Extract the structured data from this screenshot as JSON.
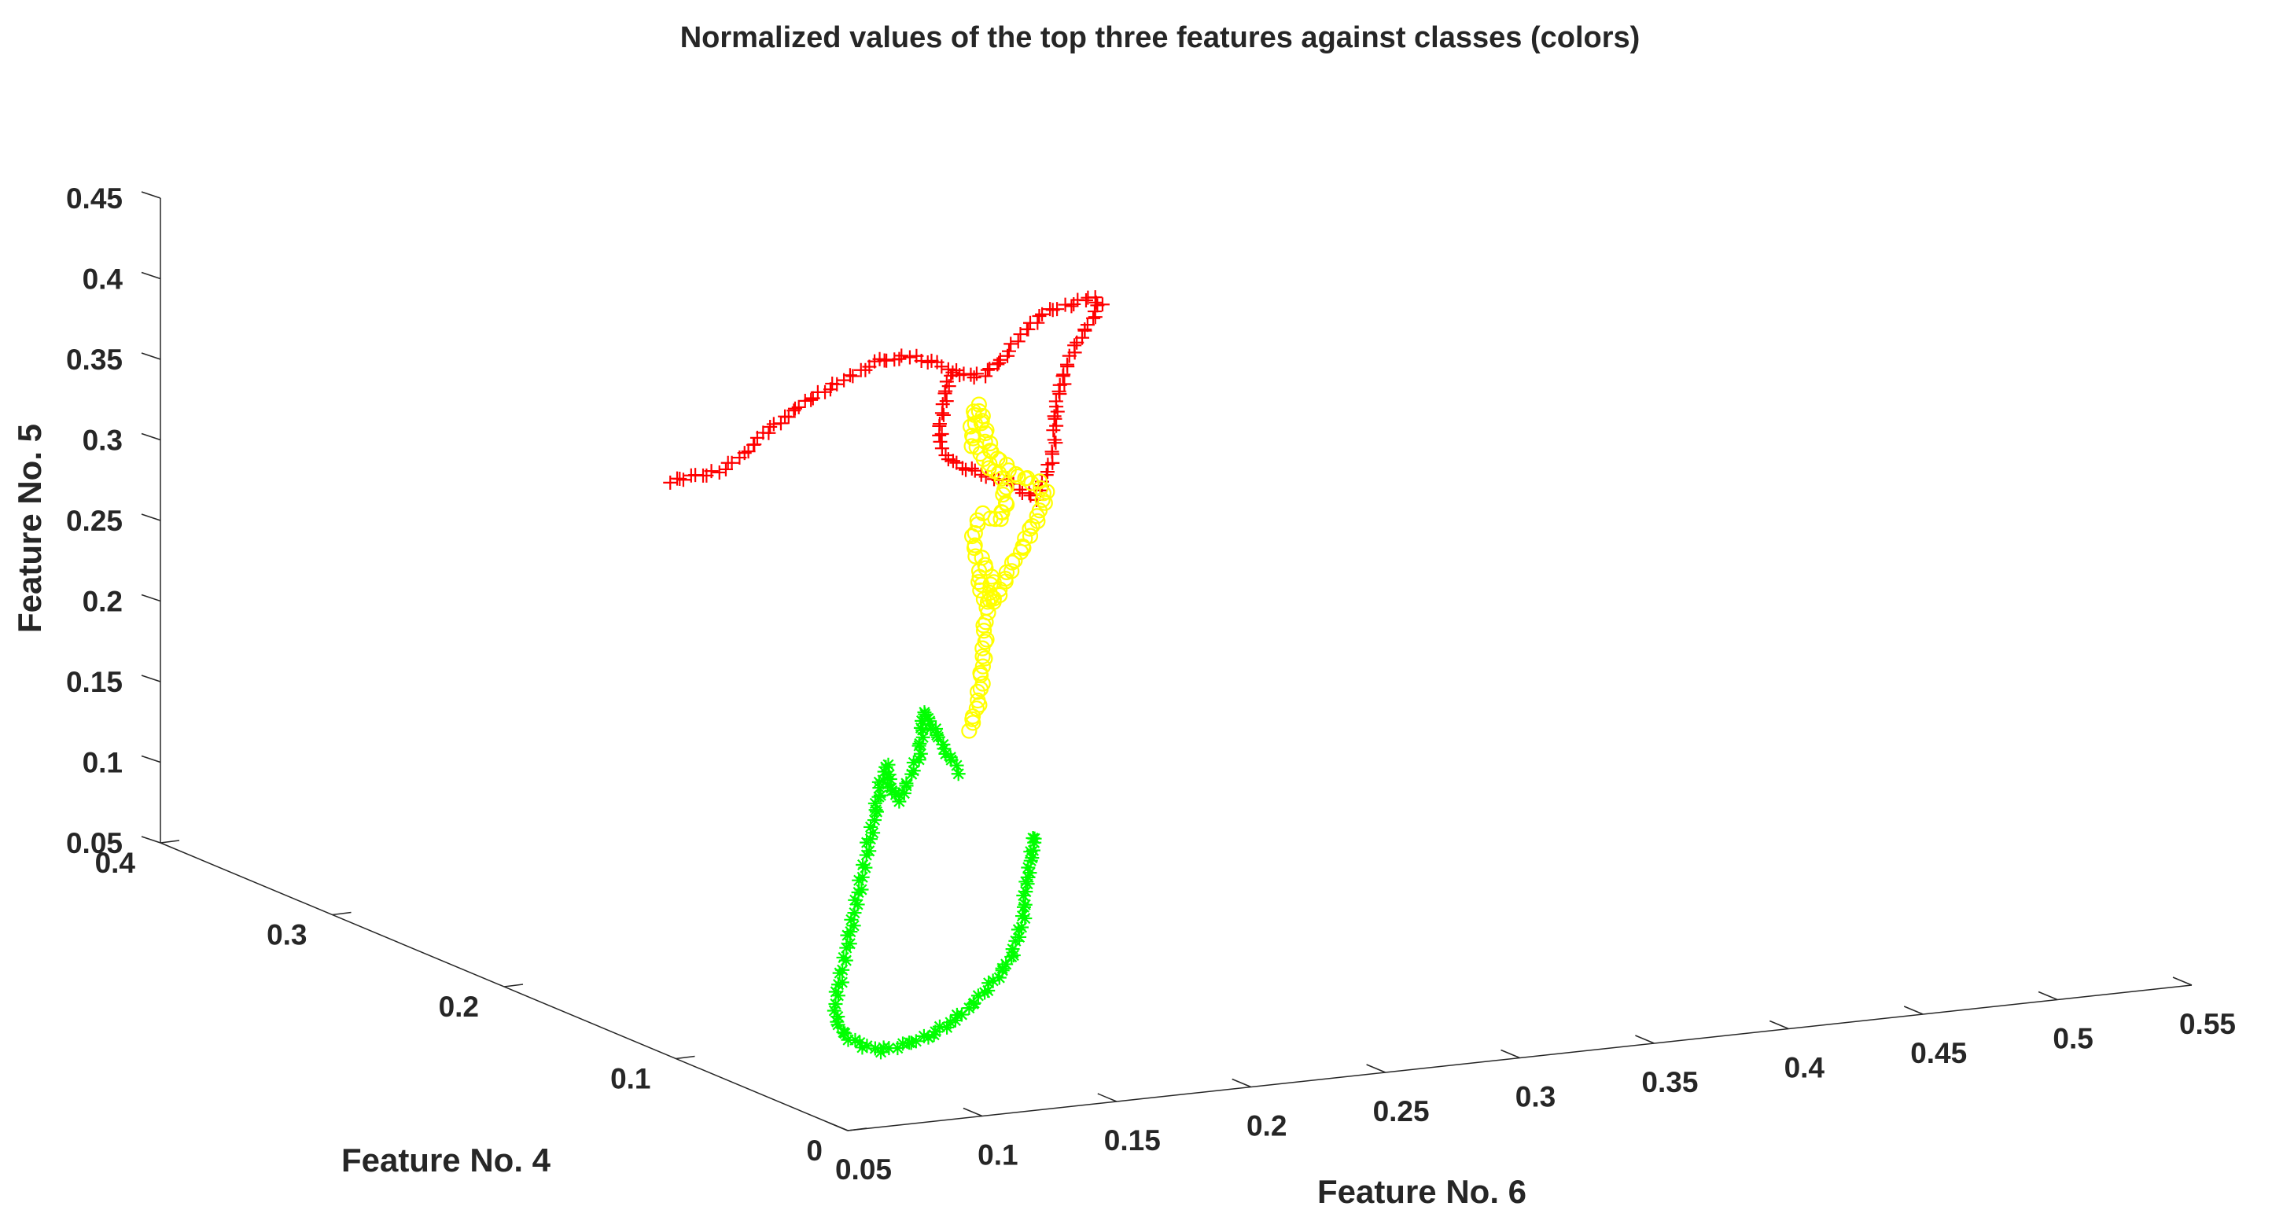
{
  "chart_data": {
    "type": "scatter",
    "projection": "3d",
    "title": "Normalized values of the top three features against classes (colors)",
    "xlabel": "Feature No. 6",
    "ylabel": "Feature No. 4",
    "zlabel": "Feature No. 5",
    "xlim": [
      0.05,
      0.55
    ],
    "ylim": [
      0,
      0.4
    ],
    "zlim": [
      0.05,
      0.45
    ],
    "xticks": [
      "0.05",
      "0.1",
      "0.15",
      "0.2",
      "0.25",
      "0.3",
      "0.35",
      "0.4",
      "0.45",
      "0.5",
      "0.55"
    ],
    "yticks": [
      "0",
      "0.1",
      "0.2",
      "0.3",
      "0.4"
    ],
    "zticks": [
      "0.05",
      "0.1",
      "0.15",
      "0.2",
      "0.25",
      "0.3",
      "0.35",
      "0.4",
      "0.45"
    ],
    "grid": false,
    "legend": "none",
    "series": [
      {
        "color": "#ff0000",
        "marker": "+",
        "points": [
          [
            0.115,
            0.205,
            0.35
          ],
          [
            0.123,
            0.203,
            0.352
          ],
          [
            0.13,
            0.2,
            0.355
          ],
          [
            0.142,
            0.202,
            0.365
          ],
          [
            0.15,
            0.206,
            0.372
          ],
          [
            0.162,
            0.21,
            0.38
          ],
          [
            0.17,
            0.213,
            0.385
          ],
          [
            0.178,
            0.214,
            0.39
          ],
          [
            0.185,
            0.214,
            0.396
          ],
          [
            0.19,
            0.212,
            0.401
          ],
          [
            0.195,
            0.215,
            0.403
          ],
          [
            0.202,
            0.22,
            0.402
          ],
          [
            0.21,
            0.224,
            0.4
          ],
          [
            0.217,
            0.226,
            0.399
          ],
          [
            0.222,
            0.23,
            0.396
          ],
          [
            0.23,
            0.236,
            0.39
          ],
          [
            0.236,
            0.24,
            0.385
          ],
          [
            0.244,
            0.246,
            0.378
          ],
          [
            0.252,
            0.252,
            0.37
          ],
          [
            0.26,
            0.258,
            0.365
          ],
          [
            0.268,
            0.262,
            0.363
          ],
          [
            0.275,
            0.266,
            0.365
          ],
          [
            0.28,
            0.268,
            0.37
          ],
          [
            0.284,
            0.268,
            0.378
          ],
          [
            0.286,
            0.266,
            0.385
          ],
          [
            0.288,
            0.263,
            0.392
          ],
          [
            0.292,
            0.262,
            0.398
          ],
          [
            0.3,
            0.262,
            0.4
          ],
          [
            0.308,
            0.266,
            0.4
          ],
          [
            0.314,
            0.27,
            0.398
          ],
          [
            0.318,
            0.272,
            0.394
          ],
          [
            0.312,
            0.268,
            0.386
          ],
          [
            0.306,
            0.265,
            0.378
          ],
          [
            0.302,
            0.263,
            0.37
          ],
          [
            0.298,
            0.261,
            0.362
          ],
          [
            0.295,
            0.258,
            0.355
          ],
          [
            0.292,
            0.256,
            0.348
          ],
          [
            0.29,
            0.254,
            0.34
          ],
          [
            0.287,
            0.25,
            0.333
          ],
          [
            0.283,
            0.244,
            0.325
          ],
          [
            0.278,
            0.238,
            0.318
          ],
          [
            0.272,
            0.232,
            0.312
          ],
          [
            0.266,
            0.226,
            0.308
          ],
          [
            0.262,
            0.222,
            0.304
          ],
          [
            0.258,
            0.22,
            0.309
          ],
          [
            0.252,
            0.216,
            0.316
          ],
          [
            0.246,
            0.214,
            0.322
          ],
          [
            0.24,
            0.212,
            0.326
          ],
          [
            0.234,
            0.21,
            0.33
          ],
          [
            0.228,
            0.206,
            0.336
          ],
          [
            0.222,
            0.202,
            0.341
          ],
          [
            0.216,
            0.198,
            0.346
          ],
          [
            0.212,
            0.196,
            0.353
          ],
          [
            0.21,
            0.196,
            0.361
          ],
          [
            0.211,
            0.198,
            0.369
          ],
          [
            0.214,
            0.201,
            0.377
          ],
          [
            0.217,
            0.204,
            0.385
          ],
          [
            0.219,
            0.206,
            0.393
          ],
          [
            0.224,
            0.209,
            0.397
          ]
        ]
      },
      {
        "color": "#ffff00",
        "marker": "o",
        "points": [
          [
            0.2,
            0.164,
            0.199
          ],
          [
            0.204,
            0.166,
            0.209
          ],
          [
            0.208,
            0.17,
            0.22
          ],
          [
            0.212,
            0.175,
            0.231
          ],
          [
            0.216,
            0.18,
            0.242
          ],
          [
            0.22,
            0.186,
            0.253
          ],
          [
            0.224,
            0.19,
            0.262
          ],
          [
            0.228,
            0.194,
            0.272
          ],
          [
            0.226,
            0.196,
            0.282
          ],
          [
            0.222,
            0.196,
            0.292
          ],
          [
            0.226,
            0.202,
            0.3
          ],
          [
            0.234,
            0.21,
            0.305
          ],
          [
            0.24,
            0.215,
            0.3
          ],
          [
            0.247,
            0.22,
            0.296
          ],
          [
            0.253,
            0.226,
            0.3
          ],
          [
            0.256,
            0.231,
            0.31
          ],
          [
            0.25,
            0.226,
            0.32
          ],
          [
            0.244,
            0.222,
            0.33
          ],
          [
            0.238,
            0.218,
            0.339
          ],
          [
            0.234,
            0.216,
            0.349
          ],
          [
            0.236,
            0.218,
            0.359
          ],
          [
            0.24,
            0.222,
            0.366
          ],
          [
            0.244,
            0.226,
            0.358
          ],
          [
            0.246,
            0.227,
            0.348
          ],
          [
            0.248,
            0.228,
            0.338
          ],
          [
            0.252,
            0.23,
            0.329
          ],
          [
            0.258,
            0.234,
            0.32
          ],
          [
            0.264,
            0.238,
            0.313
          ],
          [
            0.27,
            0.242,
            0.307
          ],
          [
            0.278,
            0.246,
            0.301
          ],
          [
            0.282,
            0.248,
            0.295
          ],
          [
            0.28,
            0.246,
            0.287
          ],
          [
            0.276,
            0.244,
            0.279
          ],
          [
            0.272,
            0.242,
            0.271
          ],
          [
            0.266,
            0.238,
            0.263
          ],
          [
            0.26,
            0.234,
            0.256
          ],
          [
            0.254,
            0.228,
            0.251
          ],
          [
            0.248,
            0.222,
            0.248
          ],
          [
            0.242,
            0.216,
            0.247
          ],
          [
            0.236,
            0.21,
            0.25
          ],
          [
            0.232,
            0.206,
            0.256
          ],
          [
            0.23,
            0.204,
            0.264
          ],
          [
            0.228,
            0.202,
            0.275
          ]
        ]
      },
      {
        "color": "#00ff00",
        "marker": "*",
        "points": [
          [
            0.196,
            0.164,
            0.173
          ],
          [
            0.192,
            0.162,
            0.181
          ],
          [
            0.188,
            0.16,
            0.191
          ],
          [
            0.184,
            0.158,
            0.201
          ],
          [
            0.18,
            0.156,
            0.21
          ],
          [
            0.178,
            0.156,
            0.218
          ],
          [
            0.176,
            0.154,
            0.206
          ],
          [
            0.174,
            0.152,
            0.194
          ],
          [
            0.17,
            0.15,
            0.185
          ],
          [
            0.166,
            0.148,
            0.176
          ],
          [
            0.162,
            0.146,
            0.17
          ],
          [
            0.158,
            0.144,
            0.176
          ],
          [
            0.156,
            0.142,
            0.186
          ],
          [
            0.154,
            0.14,
            0.196
          ],
          [
            0.15,
            0.136,
            0.193
          ],
          [
            0.146,
            0.132,
            0.183
          ],
          [
            0.142,
            0.128,
            0.173
          ],
          [
            0.138,
            0.124,
            0.164
          ],
          [
            0.134,
            0.12,
            0.155
          ],
          [
            0.13,
            0.116,
            0.146
          ],
          [
            0.126,
            0.112,
            0.137
          ],
          [
            0.122,
            0.108,
            0.128
          ],
          [
            0.118,
            0.104,
            0.119
          ],
          [
            0.114,
            0.1,
            0.11
          ],
          [
            0.11,
            0.096,
            0.101
          ],
          [
            0.106,
            0.092,
            0.092
          ],
          [
            0.102,
            0.088,
            0.084
          ],
          [
            0.098,
            0.082,
            0.076
          ],
          [
            0.095,
            0.074,
            0.07
          ],
          [
            0.096,
            0.066,
            0.066
          ],
          [
            0.1,
            0.06,
            0.064
          ],
          [
            0.108,
            0.056,
            0.068
          ],
          [
            0.116,
            0.054,
            0.074
          ],
          [
            0.124,
            0.054,
            0.081
          ],
          [
            0.132,
            0.056,
            0.088
          ],
          [
            0.14,
            0.06,
            0.095
          ],
          [
            0.148,
            0.064,
            0.102
          ],
          [
            0.156,
            0.07,
            0.109
          ],
          [
            0.162,
            0.076,
            0.116
          ],
          [
            0.168,
            0.082,
            0.123
          ],
          [
            0.172,
            0.088,
            0.13
          ],
          [
            0.178,
            0.096,
            0.136
          ],
          [
            0.184,
            0.104,
            0.14
          ],
          [
            0.19,
            0.112,
            0.144
          ],
          [
            0.196,
            0.12,
            0.148
          ],
          [
            0.2,
            0.126,
            0.149
          ],
          [
            0.202,
            0.13,
            0.146
          ]
        ]
      }
    ]
  }
}
